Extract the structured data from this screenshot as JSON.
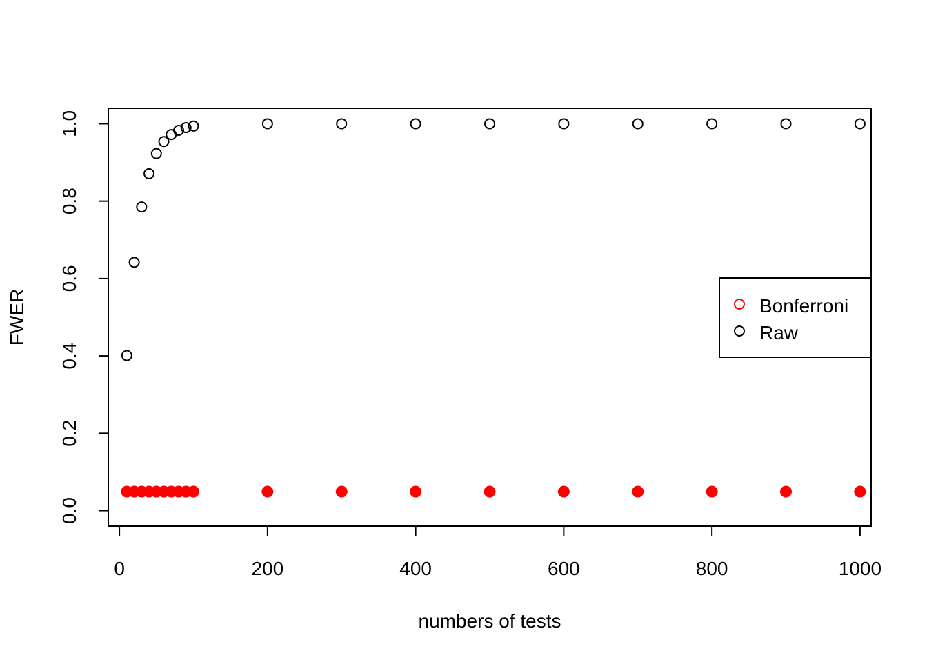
{
  "chart_data": {
    "type": "scatter",
    "xlabel": "numbers of tests",
    "ylabel": "FWER",
    "xlim": [
      -15,
      1015
    ],
    "ylim": [
      -0.04,
      1.04
    ],
    "x_ticks": [
      "0",
      "200",
      "400",
      "600",
      "800",
      "1000"
    ],
    "x_tick_values": [
      0,
      200,
      400,
      600,
      800,
      1000
    ],
    "y_ticks": [
      "0.0",
      "0.2",
      "0.4",
      "0.6",
      "0.8",
      "1.0"
    ],
    "y_tick_values": [
      0,
      0.2,
      0.4,
      0.6,
      0.8,
      1.0
    ],
    "grid": false,
    "legend_position": "right",
    "x": [
      10,
      20,
      30,
      40,
      50,
      60,
      70,
      80,
      90,
      100,
      200,
      300,
      400,
      500,
      600,
      700,
      800,
      900,
      1000
    ],
    "series": [
      {
        "name": "Bonferroni",
        "color": "#ff0000",
        "marker": "filled-circle",
        "legend_marker": "open-circle",
        "values": [
          0.049,
          0.049,
          0.049,
          0.049,
          0.049,
          0.049,
          0.049,
          0.049,
          0.049,
          0.049,
          0.049,
          0.049,
          0.049,
          0.049,
          0.049,
          0.049,
          0.049,
          0.049,
          0.049
        ]
      },
      {
        "name": "Raw",
        "color": "#000000",
        "marker": "open-circle",
        "legend_marker": "open-circle",
        "values": [
          0.401,
          0.642,
          0.785,
          0.871,
          0.923,
          0.954,
          0.972,
          0.983,
          0.99,
          0.994,
          1.0,
          1.0,
          1.0,
          1.0,
          1.0,
          1.0,
          1.0,
          1.0,
          1.0
        ]
      }
    ]
  }
}
